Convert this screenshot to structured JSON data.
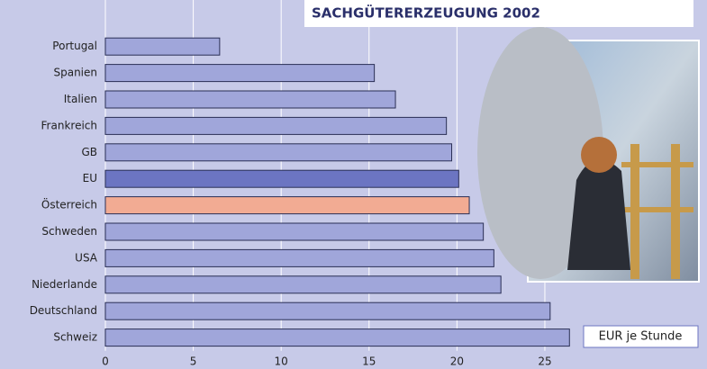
{
  "chart_data": {
    "type": "bar",
    "orientation": "horizontal",
    "title": "SACHGÜTERERZEUGUNG 2002",
    "unit_label": "EUR je Stunde",
    "categories": [
      "Portugal",
      "Spanien",
      "Italien",
      "Frankreich",
      "GB",
      "EU",
      "Österreich",
      "Schweden",
      "USA",
      "Niederlande",
      "Deutschland",
      "Schweiz"
    ],
    "values": [
      6.5,
      15.3,
      16.5,
      19.4,
      19.7,
      20.1,
      20.7,
      21.5,
      22.1,
      22.5,
      25.3,
      26.4
    ],
    "colors": [
      "#a0a6da",
      "#a0a6da",
      "#a0a6da",
      "#a0a6da",
      "#a0a6da",
      "#6c75c2",
      "#f2ab93",
      "#a0a6da",
      "#a0a6da",
      "#a0a6da",
      "#a0a6da",
      "#a0a6da"
    ],
    "xlim": [
      0,
      27
    ],
    "xticks": [
      0,
      5,
      10,
      15,
      20,
      25
    ],
    "grid": true
  }
}
